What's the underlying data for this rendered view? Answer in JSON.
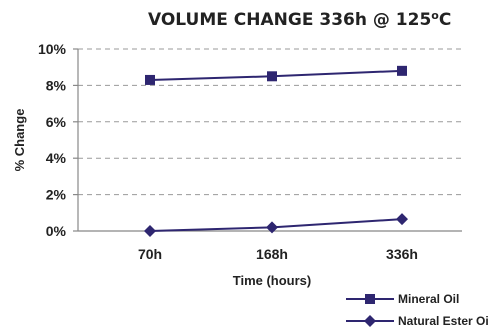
{
  "chart_data": {
    "type": "line",
    "title": "VOLUME CHANGE 336h @ 125",
    "title_sup": "o",
    "title_suffix": "C",
    "xlabel": "Time (hours)",
    "ylabel": "% Change",
    "categories": [
      "70h",
      "168h",
      "336h"
    ],
    "ylim": [
      0,
      10
    ],
    "yticks": [
      0,
      2,
      4,
      6,
      8,
      10
    ],
    "ytick_labels": [
      "0%",
      "2%",
      "4%",
      "6%",
      "8%",
      "10%"
    ],
    "grid": true,
    "legend_position": "bottom-right",
    "series": [
      {
        "name": "Mineral Oil",
        "marker": "square",
        "color": "#2e2670",
        "values": [
          8.3,
          8.5,
          8.8
        ]
      },
      {
        "name": "Natural Ester Oil",
        "marker": "diamond",
        "color": "#2e2670",
        "values": [
          0.0,
          0.2,
          0.65
        ]
      }
    ]
  }
}
